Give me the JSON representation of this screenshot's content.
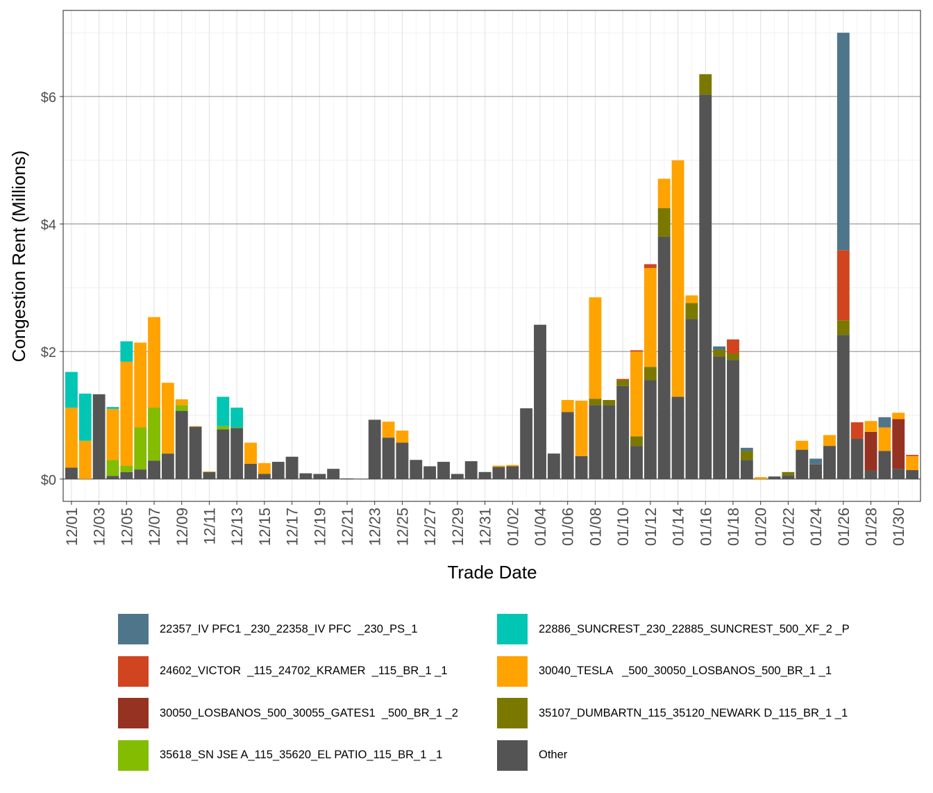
{
  "chart_data": {
    "type": "bar",
    "stacked": true,
    "xlabel": "Trade Date",
    "ylabel": "Congestion Rent (Millions)",
    "ylim": [
      -0.35,
      7.35
    ],
    "yticks": [
      0,
      2,
      4,
      6
    ],
    "ytick_labels": [
      "$0",
      "$2",
      "$4",
      "$6"
    ],
    "xtick_labels": [
      "12/01",
      "12/03",
      "12/05",
      "12/07",
      "12/09",
      "12/11",
      "12/13",
      "12/15",
      "12/17",
      "12/19",
      "12/21",
      "12/23",
      "12/25",
      "12/27",
      "12/29",
      "12/31",
      "01/02",
      "01/04",
      "01/06",
      "01/08",
      "01/10",
      "01/12",
      "01/14",
      "01/16",
      "01/18",
      "01/20",
      "01/22",
      "01/24",
      "01/26",
      "01/28",
      "01/30"
    ],
    "categories": [
      "12/01",
      "12/02",
      "12/03",
      "12/04",
      "12/05",
      "12/06",
      "12/07",
      "12/08",
      "12/09",
      "12/10",
      "12/11",
      "12/12",
      "12/13",
      "12/14",
      "12/15",
      "12/16",
      "12/17",
      "12/18",
      "12/19",
      "12/20",
      "12/21",
      "12/22",
      "12/23",
      "12/24",
      "12/25",
      "12/26",
      "12/27",
      "12/28",
      "12/29",
      "12/30",
      "12/31",
      "01/01",
      "01/02",
      "01/03",
      "01/04",
      "01/05",
      "01/06",
      "01/07",
      "01/08",
      "01/09",
      "01/10",
      "01/11",
      "01/12",
      "01/13",
      "01/14",
      "01/15",
      "01/16",
      "01/17",
      "01/18",
      "01/19",
      "01/20",
      "01/21",
      "01/22",
      "01/23",
      "01/24",
      "01/25",
      "01/26",
      "01/27",
      "01/28",
      "01/29",
      "01/30",
      "01/31"
    ],
    "legend_position": "bottom",
    "series": [
      {
        "name": "Other",
        "color": "#545454",
        "values": [
          0.18,
          0,
          1.33,
          0.05,
          0.11,
          0.15,
          0.29,
          0.4,
          1.07,
          0.82,
          0.11,
          0.78,
          0.8,
          0.24,
          0.08,
          0.27,
          0.35,
          0.09,
          0.08,
          0.16,
          0.01,
          0,
          0.93,
          0.65,
          0.57,
          0.3,
          0.2,
          0.27,
          0.08,
          0.28,
          0.11,
          0.19,
          0.2,
          1.11,
          2.42,
          0.4,
          1.05,
          0.36,
          1.16,
          1.16,
          1.46,
          0.52,
          1.55,
          3.8,
          1.29,
          2.51,
          6.03,
          1.92,
          1.87,
          0.3,
          0,
          0.04,
          0.06,
          0.46,
          0.23,
          0.52,
          2.26,
          0.63,
          0.13,
          0.44,
          0.16,
          0.14
        ]
      },
      {
        "name": "35618_SN JSE A_115_35620_EL PATIO_115_BR_1 _1",
        "color": "#83BC00",
        "values": [
          0,
          0,
          0,
          0.25,
          0.1,
          0.66,
          0.83,
          0,
          0.09,
          0,
          0,
          0.05,
          0.01,
          0,
          0,
          0,
          0,
          0,
          0,
          0,
          0,
          0,
          0,
          0,
          0,
          0,
          0,
          0,
          0,
          0,
          0,
          0,
          0,
          0,
          0,
          0,
          0,
          0,
          0,
          0,
          0,
          0,
          0,
          0,
          0,
          0,
          0,
          0,
          0,
          0,
          0,
          0,
          0,
          0,
          0,
          0,
          0,
          0,
          0,
          0,
          0,
          0
        ]
      },
      {
        "name": "35107_DUMBARTN_115_35120_NEWARK D_115_BR_1 _1",
        "color": "#7B7800",
        "values": [
          0,
          0,
          0,
          0,
          0,
          0,
          0,
          0,
          0,
          0,
          0,
          0,
          0,
          0,
          0,
          0,
          0,
          0,
          0,
          0,
          0,
          0,
          0,
          0,
          0,
          0,
          0,
          0,
          0,
          0,
          0,
          0,
          0,
          0,
          0,
          0,
          0,
          0,
          0.1,
          0.08,
          0.09,
          0.15,
          0.21,
          0.45,
          0,
          0.25,
          0.32,
          0.11,
          0.1,
          0.14,
          0,
          0,
          0.05,
          0,
          0,
          0,
          0.23,
          0,
          0,
          0,
          0,
          0
        ]
      },
      {
        "name": "30050_LOSBANOS_500_30055_GATES1  _500_BR_1 _2",
        "color": "#963222",
        "values": [
          0,
          0,
          0,
          0,
          0,
          0,
          0,
          0,
          0,
          0,
          0,
          0,
          0,
          0,
          0,
          0,
          0,
          0,
          0,
          0,
          0,
          0,
          0,
          0,
          0,
          0,
          0,
          0,
          0,
          0,
          0,
          0,
          0,
          0,
          0,
          0,
          0,
          0,
          0,
          0,
          0,
          0,
          0,
          0,
          0,
          0,
          0,
          0,
          0,
          0,
          0,
          0,
          0,
          0,
          0,
          0,
          0,
          0,
          0.61,
          0,
          0.78,
          0
        ]
      },
      {
        "name": "30040_TESLA   _500_30050_LOSBANOS_500_BR_1 _1",
        "color": "#FFA300",
        "values": [
          0.94,
          0.6,
          0,
          0.8,
          1.63,
          1.33,
          1.42,
          1.11,
          0.09,
          0.01,
          0.01,
          0,
          0,
          0.33,
          0.17,
          0,
          0,
          0,
          0,
          0,
          0,
          0,
          0,
          0.25,
          0.19,
          0,
          0,
          0,
          0,
          0,
          0,
          0.02,
          0.02,
          0,
          0,
          0,
          0.19,
          0.87,
          1.59,
          0,
          0,
          1.33,
          1.55,
          0.46,
          3.71,
          0.12,
          0,
          0,
          0,
          0,
          0.03,
          0,
          0,
          0.14,
          0,
          0.17,
          0,
          0,
          0.17,
          0.37,
          0.1,
          0.22
        ]
      },
      {
        "name": "24602_VICTOR  _115_24702_KRAMER  _115_BR_1 _1",
        "color": "#D04520",
        "values": [
          0,
          0,
          0,
          0,
          0,
          0,
          0,
          0,
          0,
          0,
          0,
          0,
          0,
          0,
          0,
          0,
          0,
          0,
          0,
          0,
          0,
          0,
          0,
          0,
          0,
          0,
          0,
          0,
          0,
          0,
          0,
          0,
          0,
          0,
          0,
          0,
          0,
          0,
          0,
          0,
          0.02,
          0.02,
          0.06,
          0,
          0,
          0,
          0,
          0,
          0.22,
          0,
          0,
          0,
          0,
          0,
          0,
          0,
          1.1,
          0.26,
          0,
          0,
          0,
          0.02
        ]
      },
      {
        "name": "22886_SUNCREST_230_22885_SUNCREST_500_XF_2 _P",
        "color": "#00C6B3",
        "values": [
          0.56,
          0.74,
          0,
          0.03,
          0.32,
          0,
          0,
          0,
          0,
          0,
          0,
          0.46,
          0.31,
          0,
          0,
          0,
          0,
          0,
          0,
          0,
          0,
          0,
          0,
          0,
          0,
          0,
          0,
          0,
          0,
          0,
          0,
          0,
          0,
          0,
          0,
          0,
          0,
          0,
          0,
          0,
          0,
          0,
          0,
          0,
          0,
          0,
          0,
          0,
          0,
          0,
          0,
          0,
          0,
          0,
          0,
          0,
          0,
          0,
          0,
          0,
          0,
          0
        ]
      },
      {
        "name": "22357_IV PFC1 _230_22358_IV PFC  _230_PS_1",
        "color": "#4F758B",
        "values": [
          0,
          0,
          0,
          0,
          0,
          0,
          0,
          0,
          0,
          0,
          0,
          0,
          0,
          0,
          0,
          0,
          0,
          0,
          0,
          0,
          0,
          0,
          0,
          0,
          0,
          0,
          0,
          0,
          0,
          0,
          0,
          0,
          0,
          0,
          0,
          0,
          0,
          0,
          0,
          0,
          0,
          0,
          0,
          0,
          0,
          0,
          0,
          0.05,
          0,
          0.05,
          0,
          0,
          0,
          0,
          0.09,
          0,
          3.41,
          0,
          0,
          0.16,
          0,
          0
        ]
      }
    ]
  },
  "legend": {
    "items": [
      {
        "label": "22357_IV PFC1 _230_22358_IV PFC  _230_PS_1",
        "color": "#4F758B"
      },
      {
        "label": "22886_SUNCREST_230_22885_SUNCREST_500_XF_2 _P",
        "color": "#00C6B3"
      },
      {
        "label": "24602_VICTOR  _115_24702_KRAMER  _115_BR_1 _1",
        "color": "#D04520"
      },
      {
        "label": "30040_TESLA   _500_30050_LOSBANOS_500_BR_1 _1",
        "color": "#FFA300"
      },
      {
        "label": "30050_LOSBANOS_500_30055_GATES1  _500_BR_1 _2",
        "color": "#963222"
      },
      {
        "label": "35107_DUMBARTN_115_35120_NEWARK D_115_BR_1 _1",
        "color": "#7B7800"
      },
      {
        "label": "35618_SN JSE A_115_35620_EL PATIO_115_BR_1 _1",
        "color": "#83BC00"
      },
      {
        "label": "Other",
        "color": "#545454"
      }
    ]
  }
}
